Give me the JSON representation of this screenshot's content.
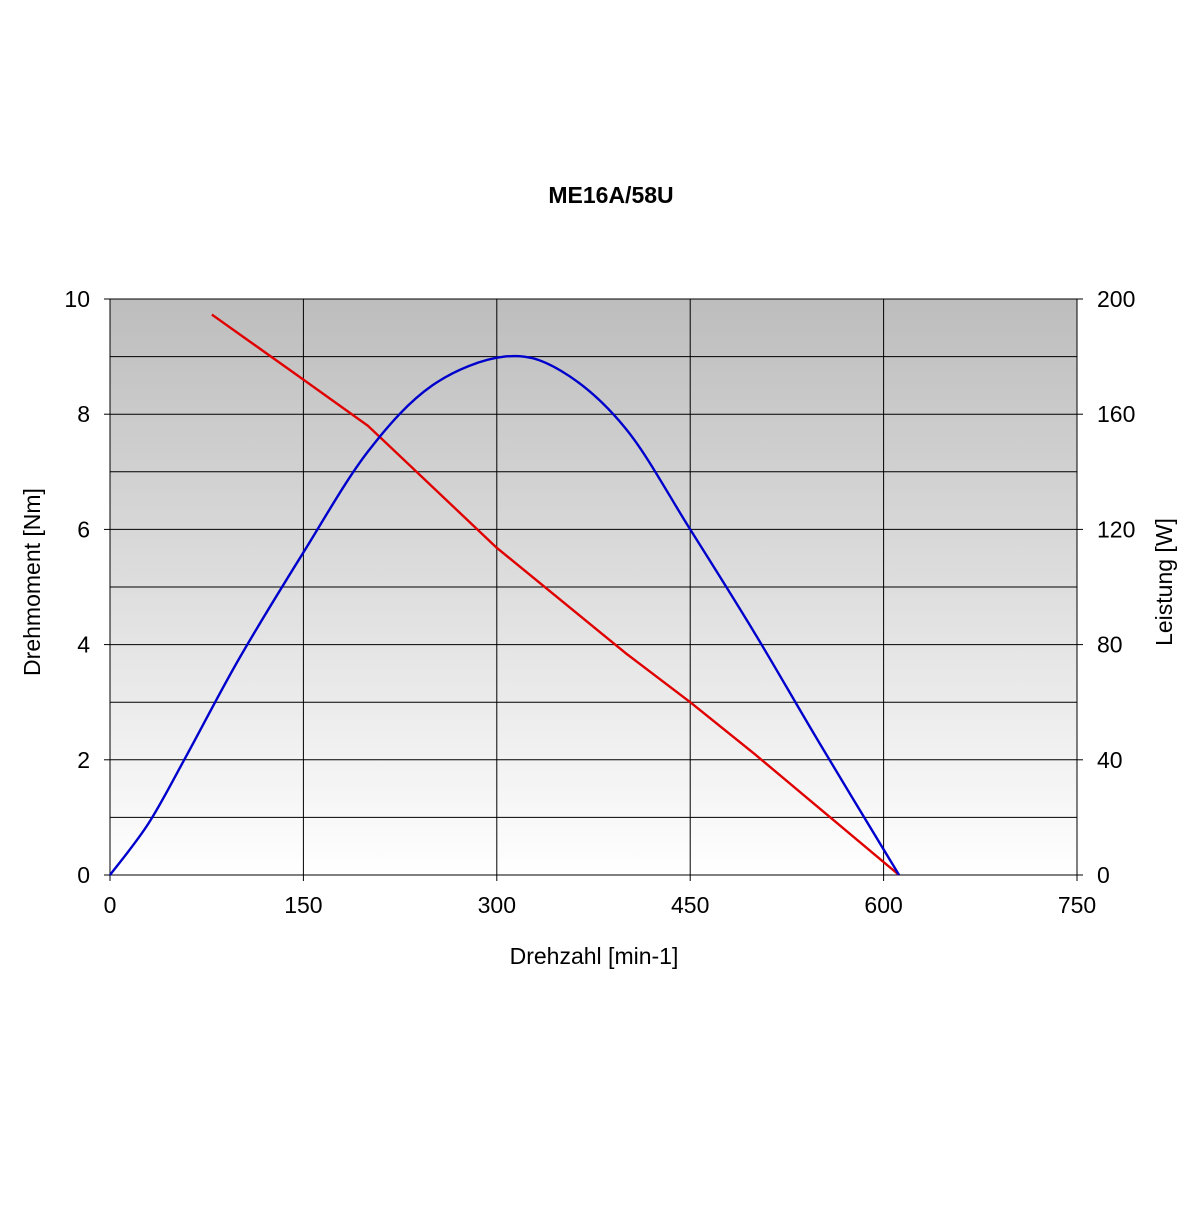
{
  "chart_data": {
    "type": "line",
    "title": "ME16A/58U",
    "xlabel": "Drehzahl [min-1]",
    "ylabel_left": "Drehmoment [Nm]",
    "ylabel_right": "Leistung [W]",
    "xlim": [
      0,
      750
    ],
    "ylim_left": [
      0,
      10
    ],
    "ylim_right": [
      0,
      200
    ],
    "x_ticks": [
      "0",
      "150",
      "300",
      "450",
      "600",
      "750"
    ],
    "y_ticks_left": [
      "0",
      "2",
      "4",
      "6",
      "8",
      "10"
    ],
    "y_ticks_right": [
      "0",
      "40",
      "80",
      "120",
      "160",
      "200"
    ],
    "grid": true,
    "legend": "none",
    "series": [
      {
        "axis": "left",
        "color": "#e00000",
        "x": [
          79,
          150,
          200,
          300,
          400,
          450,
          500,
          612
        ],
        "y": [
          9.73,
          8.6,
          7.8,
          5.68,
          3.85,
          3.0,
          2.1,
          0.0
        ]
      },
      {
        "axis": "right",
        "color": "#0000cc",
        "x": [
          0,
          30,
          60,
          100,
          150,
          200,
          250,
          306,
          350,
          400,
          450,
          500,
          550,
          612
        ],
        "y": [
          0,
          18,
          42,
          75,
          112,
          147,
          170,
          180,
          175,
          155,
          120,
          84,
          46,
          0
        ]
      }
    ]
  }
}
